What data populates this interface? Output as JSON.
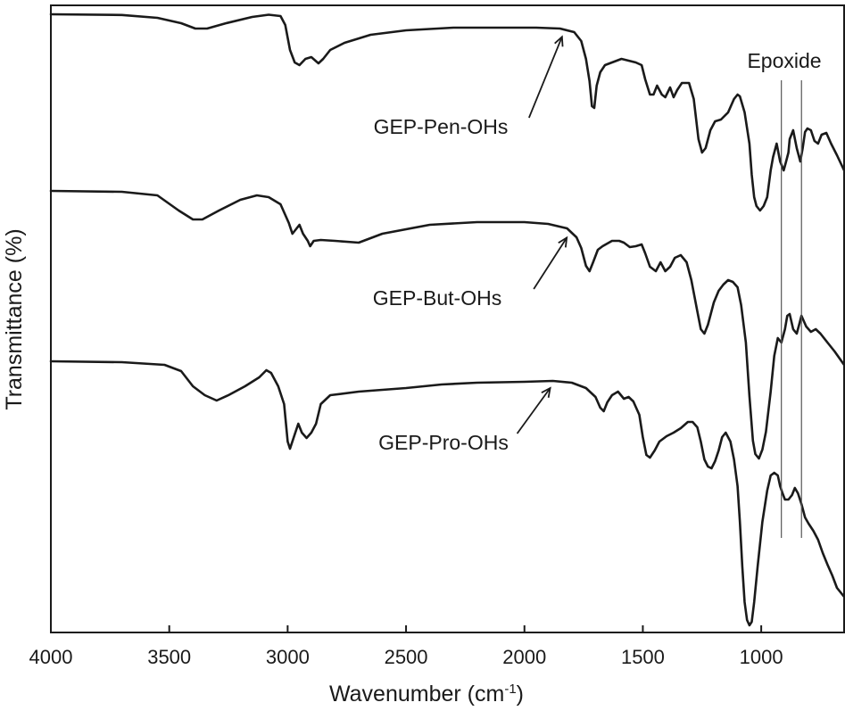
{
  "chart_data": {
    "type": "line",
    "xlabel": "Wavenumber (cm",
    "xlabel_sup": "-1",
    "xlabel_end": ")",
    "ylabel": "Transmittance (%)",
    "xlim": [
      4000,
      650
    ],
    "x_reversed": true,
    "y_ticks_shown": false,
    "grid": false,
    "x_ticks": [
      4000,
      3500,
      3000,
      2500,
      2000,
      1500,
      1000
    ],
    "series": [
      {
        "name": "GEP-Pen-OHs",
        "label_anchor_x": 1830,
        "points": [
          [
            4000,
            0
          ],
          [
            3700,
            -0.8
          ],
          [
            3550,
            -4
          ],
          [
            3450,
            -10
          ],
          [
            3390,
            -16
          ],
          [
            3340,
            -16
          ],
          [
            3260,
            -10
          ],
          [
            3150,
            -3
          ],
          [
            3080,
            -0.5
          ],
          [
            3030,
            -2
          ],
          [
            3010,
            -12
          ],
          [
            2990,
            -40
          ],
          [
            2970,
            -54
          ],
          [
            2950,
            -57
          ],
          [
            2925,
            -50
          ],
          [
            2900,
            -48
          ],
          [
            2870,
            -55
          ],
          [
            2850,
            -50
          ],
          [
            2820,
            -40
          ],
          [
            2760,
            -32
          ],
          [
            2650,
            -23
          ],
          [
            2500,
            -18
          ],
          [
            2300,
            -15
          ],
          [
            2100,
            -15
          ],
          [
            1950,
            -15
          ],
          [
            1850,
            -16
          ],
          [
            1790,
            -20
          ],
          [
            1760,
            -30
          ],
          [
            1740,
            -50
          ],
          [
            1725,
            -75
          ],
          [
            1715,
            -103
          ],
          [
            1705,
            -105
          ],
          [
            1695,
            -80
          ],
          [
            1680,
            -65
          ],
          [
            1660,
            -57
          ],
          [
            1630,
            -54
          ],
          [
            1610,
            -52
          ],
          [
            1590,
            -50
          ],
          [
            1560,
            -52
          ],
          [
            1530,
            -54
          ],
          [
            1505,
            -57
          ],
          [
            1490,
            -73
          ],
          [
            1470,
            -90
          ],
          [
            1455,
            -90
          ],
          [
            1440,
            -80
          ],
          [
            1420,
            -90
          ],
          [
            1405,
            -93
          ],
          [
            1385,
            -82
          ],
          [
            1370,
            -93
          ],
          [
            1355,
            -85
          ],
          [
            1335,
            -77
          ],
          [
            1305,
            -77
          ],
          [
            1285,
            -95
          ],
          [
            1265,
            -140
          ],
          [
            1250,
            -155
          ],
          [
            1235,
            -150
          ],
          [
            1215,
            -130
          ],
          [
            1195,
            -120
          ],
          [
            1170,
            -118
          ],
          [
            1140,
            -110
          ],
          [
            1115,
            -95
          ],
          [
            1100,
            -90
          ],
          [
            1090,
            -92
          ],
          [
            1070,
            -110
          ],
          [
            1050,
            -145
          ],
          [
            1040,
            -180
          ],
          [
            1030,
            -205
          ],
          [
            1020,
            -215
          ],
          [
            1005,
            -220
          ],
          [
            990,
            -215
          ],
          [
            975,
            -205
          ],
          [
            960,
            -175
          ],
          [
            950,
            -160
          ],
          [
            935,
            -145
          ],
          [
            920,
            -165
          ],
          [
            905,
            -175
          ],
          [
            895,
            -165
          ],
          [
            885,
            -155
          ],
          [
            880,
            -140
          ],
          [
            865,
            -130
          ],
          [
            850,
            -150
          ],
          [
            835,
            -165
          ],
          [
            825,
            -150
          ],
          [
            815,
            -132
          ],
          [
            805,
            -128
          ],
          [
            790,
            -130
          ],
          [
            775,
            -142
          ],
          [
            760,
            -145
          ],
          [
            745,
            -135
          ],
          [
            725,
            -133
          ],
          [
            705,
            -145
          ],
          [
            680,
            -158
          ],
          [
            650,
            -175
          ]
        ]
      },
      {
        "name": "GEP-But-OHs",
        "label_anchor_x": 1810,
        "points": [
          [
            4000,
            0
          ],
          [
            3700,
            -1
          ],
          [
            3550,
            -5
          ],
          [
            3460,
            -22
          ],
          [
            3400,
            -32
          ],
          [
            3360,
            -32
          ],
          [
            3290,
            -22
          ],
          [
            3200,
            -10
          ],
          [
            3130,
            -5
          ],
          [
            3080,
            -7
          ],
          [
            3030,
            -15
          ],
          [
            2995,
            -36
          ],
          [
            2980,
            -48
          ],
          [
            2965,
            -43
          ],
          [
            2950,
            -38
          ],
          [
            2935,
            -48
          ],
          [
            2915,
            -56
          ],
          [
            2905,
            -62
          ],
          [
            2890,
            -56
          ],
          [
            2860,
            -55
          ],
          [
            2800,
            -56
          ],
          [
            2700,
            -58
          ],
          [
            2600,
            -48
          ],
          [
            2400,
            -38
          ],
          [
            2200,
            -35
          ],
          [
            2000,
            -35
          ],
          [
            1900,
            -37
          ],
          [
            1820,
            -42
          ],
          [
            1780,
            -52
          ],
          [
            1760,
            -64
          ],
          [
            1740,
            -84
          ],
          [
            1725,
            -90
          ],
          [
            1710,
            -80
          ],
          [
            1690,
            -66
          ],
          [
            1670,
            -62
          ],
          [
            1630,
            -56
          ],
          [
            1600,
            -56
          ],
          [
            1580,
            -58
          ],
          [
            1555,
            -63
          ],
          [
            1530,
            -62
          ],
          [
            1505,
            -60
          ],
          [
            1490,
            -70
          ],
          [
            1470,
            -85
          ],
          [
            1445,
            -90
          ],
          [
            1425,
            -80
          ],
          [
            1405,
            -90
          ],
          [
            1385,
            -85
          ],
          [
            1365,
            -75
          ],
          [
            1340,
            -72
          ],
          [
            1315,
            -80
          ],
          [
            1295,
            -100
          ],
          [
            1270,
            -135
          ],
          [
            1255,
            -155
          ],
          [
            1240,
            -160
          ],
          [
            1225,
            -150
          ],
          [
            1200,
            -125
          ],
          [
            1180,
            -112
          ],
          [
            1160,
            -105
          ],
          [
            1140,
            -100
          ],
          [
            1120,
            -102
          ],
          [
            1100,
            -108
          ],
          [
            1085,
            -128
          ],
          [
            1065,
            -170
          ],
          [
            1050,
            -230
          ],
          [
            1035,
            -280
          ],
          [
            1025,
            -295
          ],
          [
            1010,
            -300
          ],
          [
            995,
            -290
          ],
          [
            980,
            -270
          ],
          [
            960,
            -225
          ],
          [
            945,
            -185
          ],
          [
            930,
            -165
          ],
          [
            915,
            -170
          ],
          [
            900,
            -155
          ],
          [
            890,
            -140
          ],
          [
            880,
            -138
          ],
          [
            865,
            -155
          ],
          [
            850,
            -160
          ],
          [
            840,
            -150
          ],
          [
            830,
            -140
          ],
          [
            810,
            -152
          ],
          [
            790,
            -158
          ],
          [
            770,
            -155
          ],
          [
            750,
            -160
          ],
          [
            720,
            -170
          ],
          [
            690,
            -180
          ],
          [
            650,
            -195
          ]
        ]
      },
      {
        "name": "GEP-Pro-OHs",
        "label_anchor_x": 1880,
        "points": [
          [
            4000,
            0
          ],
          [
            3700,
            -1
          ],
          [
            3520,
            -4
          ],
          [
            3450,
            -11
          ],
          [
            3400,
            -28
          ],
          [
            3350,
            -38
          ],
          [
            3300,
            -44
          ],
          [
            3250,
            -38
          ],
          [
            3180,
            -28
          ],
          [
            3120,
            -18
          ],
          [
            3090,
            -10
          ],
          [
            3070,
            -13
          ],
          [
            3040,
            -28
          ],
          [
            3015,
            -48
          ],
          [
            3000,
            -90
          ],
          [
            2990,
            -98
          ],
          [
            2970,
            -82
          ],
          [
            2955,
            -70
          ],
          [
            2940,
            -80
          ],
          [
            2920,
            -86
          ],
          [
            2900,
            -80
          ],
          [
            2880,
            -70
          ],
          [
            2860,
            -48
          ],
          [
            2820,
            -38
          ],
          [
            2700,
            -34
          ],
          [
            2500,
            -30
          ],
          [
            2350,
            -26
          ],
          [
            2200,
            -24
          ],
          [
            2000,
            -23
          ],
          [
            1880,
            -22
          ],
          [
            1800,
            -24
          ],
          [
            1740,
            -30
          ],
          [
            1700,
            -40
          ],
          [
            1680,
            -52
          ],
          [
            1665,
            -56
          ],
          [
            1650,
            -46
          ],
          [
            1630,
            -38
          ],
          [
            1605,
            -34
          ],
          [
            1580,
            -42
          ],
          [
            1560,
            -40
          ],
          [
            1540,
            -45
          ],
          [
            1515,
            -60
          ],
          [
            1500,
            -85
          ],
          [
            1485,
            -105
          ],
          [
            1470,
            -108
          ],
          [
            1450,
            -100
          ],
          [
            1430,
            -90
          ],
          [
            1400,
            -84
          ],
          [
            1370,
            -80
          ],
          [
            1340,
            -75
          ],
          [
            1310,
            -68
          ],
          [
            1290,
            -68
          ],
          [
            1270,
            -74
          ],
          [
            1255,
            -90
          ],
          [
            1240,
            -110
          ],
          [
            1225,
            -118
          ],
          [
            1210,
            -120
          ],
          [
            1195,
            -112
          ],
          [
            1180,
            -100
          ],
          [
            1165,
            -85
          ],
          [
            1150,
            -80
          ],
          [
            1130,
            -90
          ],
          [
            1115,
            -110
          ],
          [
            1100,
            -140
          ],
          [
            1090,
            -180
          ],
          [
            1080,
            -230
          ],
          [
            1070,
            -270
          ],
          [
            1060,
            -290
          ],
          [
            1050,
            -296
          ],
          [
            1040,
            -292
          ],
          [
            1030,
            -270
          ],
          [
            1015,
            -230
          ],
          [
            995,
            -180
          ],
          [
            975,
            -145
          ],
          [
            960,
            -128
          ],
          [
            945,
            -125
          ],
          [
            930,
            -128
          ],
          [
            920,
            -140
          ],
          [
            910,
            -148
          ],
          [
            900,
            -155
          ],
          [
            885,
            -155
          ],
          [
            870,
            -150
          ],
          [
            858,
            -142
          ],
          [
            845,
            -148
          ],
          [
            830,
            -160
          ],
          [
            815,
            -175
          ],
          [
            800,
            -182
          ],
          [
            780,
            -190
          ],
          [
            760,
            -200
          ],
          [
            740,
            -215
          ],
          [
            720,
            -228
          ],
          [
            700,
            -240
          ],
          [
            680,
            -254
          ],
          [
            650,
            -264
          ]
        ]
      }
    ],
    "annotations": {
      "epoxide_label": "Epoxide",
      "epoxide_lines_x": [
        915,
        830
      ]
    }
  }
}
